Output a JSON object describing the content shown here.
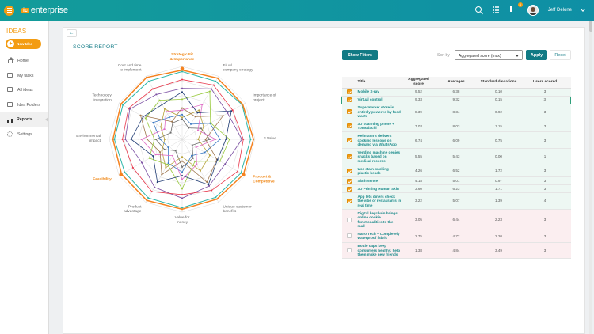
{
  "header": {
    "logo_mark": "ic",
    "logo_text": "enterprise",
    "notifications_count": "4",
    "user_name": "Jeff Delone"
  },
  "sidebar": {
    "title": "IDEAS",
    "new_idea_label": "New Idea",
    "items": [
      {
        "label": "Home",
        "icon": "home-icon"
      },
      {
        "label": "My tasks",
        "icon": "tasks-icon"
      },
      {
        "label": "All ideas",
        "icon": "ideas-icon"
      },
      {
        "label": "Idea Folders",
        "icon": "folder-icon"
      },
      {
        "label": "Reports",
        "icon": "bar-chart-icon",
        "active": true
      },
      {
        "label": "Settings",
        "icon": "gear-icon"
      }
    ]
  },
  "report": {
    "title": "SCORE REPORT",
    "show_filters_label": "Show Filters",
    "sort_label": "Sort by",
    "sort_value": "Aggregated score (max)",
    "apply_label": "Apply",
    "reset_label": "Reset"
  },
  "colors": {
    "accent": "#f39c12",
    "primary": "#117a84",
    "link": "#1a8a8a",
    "selected_row": "#edf7f3",
    "unselected_row": "#fbeef0"
  },
  "table": {
    "headers": [
      "",
      "Title",
      "Aggregated score",
      "Averages",
      "Standard deviations",
      "Users scored"
    ],
    "rows": [
      {
        "checked": true,
        "title": "Mobile X-ray",
        "agg": "9.52",
        "avg": "6.38",
        "std": "0.10",
        "users": "3"
      },
      {
        "checked": true,
        "title": "Virtual control",
        "agg": "9.33",
        "avg": "9.32",
        "std": "0.15",
        "users": "3",
        "highlight": true
      },
      {
        "checked": true,
        "title": "Supermarket store is entirely powered by food waste",
        "agg": "8.39",
        "avg": "8.34",
        "std": "0.92",
        "users": "3"
      },
      {
        "checked": true,
        "title": "3D scanning phone + Tomodachi",
        "agg": "7.03",
        "avg": "8.03",
        "std": "1.15",
        "users": "3"
      },
      {
        "checked": true,
        "title": "Heilmann's delivers cooking lessons on demand via WhatsApp",
        "agg": "6.74",
        "avg": "6.09",
        "std": "0.75",
        "users": "3"
      },
      {
        "checked": true,
        "title": "Vending machine denies snacks based on medical records",
        "agg": "5.55",
        "avg": "5.43",
        "std": "0.00",
        "users": "1"
      },
      {
        "checked": true,
        "title": "Use stain-sucking plastic beads",
        "agg": "4.26",
        "avg": "6.52",
        "std": "1.72",
        "users": "3"
      },
      {
        "checked": true,
        "title": "Sixth sense",
        "agg": "4.18",
        "avg": "5.01",
        "std": "0.97",
        "users": "3"
      },
      {
        "checked": true,
        "title": "3D Printing Human Skin",
        "agg": "3.60",
        "avg": "6.23",
        "std": "1.71",
        "users": "3"
      },
      {
        "checked": true,
        "title": "App lets diners check the vibe of restaurants in real time",
        "agg": "3.22",
        "avg": "5.07",
        "std": "1.39",
        "users": "4"
      },
      {
        "checked": false,
        "title": "Digital keychain brings online cookie functionalities to the mall",
        "agg": "3.05",
        "avg": "6.44",
        "std": "2.23",
        "users": "3"
      },
      {
        "checked": false,
        "title": "Nano Tech – Completely waterproof fabric",
        "agg": "2.75",
        "avg": "4.72",
        "std": "2.20",
        "users": "3"
      },
      {
        "checked": false,
        "title": "Bottle caps keep consumers healthy, help them make new friends",
        "agg": "1.38",
        "avg": "4.84",
        "std": "3.49",
        "users": "3"
      }
    ]
  },
  "chart_data": {
    "type": "radar",
    "axes": [
      "Strategic Fit & Importance",
      "Fit w/ company strategy",
      "Importance of project",
      "$ Value",
      "Product & Competitive",
      "Unique customer benefits",
      "Value for money",
      "Product advantage",
      "Feasibility",
      "Environmental impact",
      "Technology integration",
      "Cost and time to implement"
    ],
    "highlight_axes": [
      0,
      4,
      8
    ],
    "range": [
      0,
      10
    ],
    "series": [
      {
        "color": "#f5821f",
        "values": [
          9.5,
          9.7,
          9.6,
          9.8,
          9.7,
          9.5,
          9.6,
          9.7,
          9.6,
          9.5,
          9.7,
          9.8
        ],
        "width": 1.5
      },
      {
        "color": "#2bb6a8",
        "values": [
          9.3,
          9.2,
          9.5,
          9.4,
          9.3,
          9.2,
          9.4,
          9.3,
          9.1,
          9.3,
          9.4,
          9.2
        ],
        "width": 1
      },
      {
        "color": "#e8374b",
        "values": [
          8.2,
          8.6,
          8.0,
          8.4,
          8.8,
          8.1,
          7.6,
          8.3,
          7.8,
          8.2,
          8.5,
          8.0
        ],
        "width": 0.8
      },
      {
        "color": "#7b4fa3",
        "values": [
          7.0,
          8.0,
          7.2,
          8.2,
          6.8,
          7.4,
          8.1,
          7.6,
          6.4,
          7.8,
          8.3,
          7.1
        ],
        "width": 0.8
      },
      {
        "color": "#1f3b73",
        "values": [
          6.5,
          4.2,
          7.8,
          6.0,
          5.6,
          7.2,
          5.0,
          6.8,
          4.6,
          7.0,
          6.2,
          5.5
        ],
        "width": 0.8
      },
      {
        "color": "#98c93c",
        "values": [
          5.5,
          7.6,
          4.5,
          6.5,
          6.0,
          3.5,
          6.8,
          4.0,
          5.2,
          3.8,
          5.8,
          6.2
        ],
        "width": 0.8
      },
      {
        "color": "#a07850",
        "values": [
          4.3,
          3.6,
          6.5,
          3.2,
          5.5,
          6.8,
          3.0,
          5.6,
          3.5,
          4.8,
          6.6,
          2.8
        ],
        "width": 0.8
      },
      {
        "color": "#e06bc5",
        "values": [
          4.0,
          5.5,
          2.5,
          4.6,
          2.2,
          4.0,
          5.5,
          2.6,
          4.2,
          5.6,
          2.8,
          4.4
        ],
        "width": 0.8
      },
      {
        "color": "#3a78c2",
        "values": [
          3.4,
          2.4,
          4.4,
          5.2,
          3.6,
          2.6,
          4.5,
          3.8,
          2.2,
          3.0,
          4.6,
          3.5
        ],
        "width": 0.8
      },
      {
        "color": "#b8a33c",
        "values": [
          3.0,
          4.6,
          3.4,
          2.2,
          4.4,
          5.0,
          2.4,
          4.5,
          3.2,
          2.4,
          3.4,
          4.8
        ],
        "width": 0.8
      },
      {
        "color": "#6e6e6e",
        "values": [
          2.8,
          1.8,
          3.0,
          3.8,
          1.6,
          3.0,
          3.8,
          1.8,
          2.8,
          3.6,
          1.8,
          2.6
        ],
        "width": 0.8
      }
    ]
  }
}
